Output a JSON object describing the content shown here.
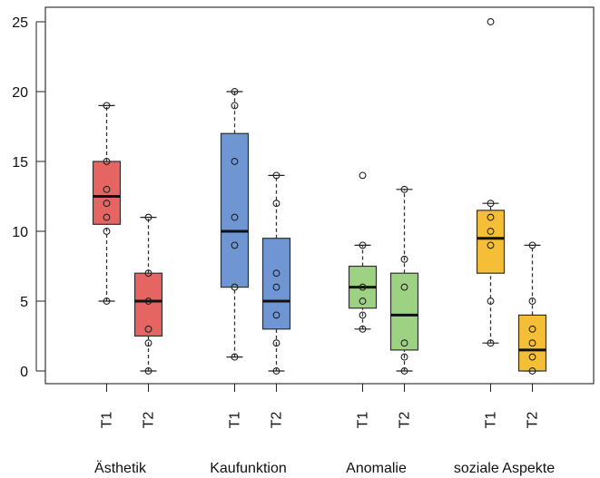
{
  "chart_data": {
    "type": "box",
    "y_axis": {
      "ticks": [
        0,
        5,
        10,
        15,
        20,
        25
      ],
      "ylim": [
        0,
        25
      ]
    },
    "groups": [
      {
        "name": "Ästhetik",
        "color": "#e56563",
        "boxes": [
          {
            "label": "T1",
            "whisker_low": 5,
            "q1": 10.5,
            "median": 12.5,
            "q3": 15,
            "whisker_high": 19,
            "points": [
              19,
              15,
              13,
              12,
              11,
              10,
              5
            ]
          },
          {
            "label": "T2",
            "whisker_low": 0,
            "q1": 2.5,
            "median": 5,
            "q3": 7,
            "whisker_high": 11,
            "points": [
              11,
              7,
              5,
              3,
              2,
              0
            ]
          }
        ]
      },
      {
        "name": "Kaufunktion",
        "color": "#6f95d2",
        "boxes": [
          {
            "label": "T1",
            "whisker_low": 1,
            "q1": 6,
            "median": 10,
            "q3": 17,
            "whisker_high": 20,
            "points": [
              20,
              19,
              15,
              11,
              9,
              6,
              1
            ]
          },
          {
            "label": "T2",
            "whisker_low": 0,
            "q1": 3,
            "median": 5,
            "q3": 9.5,
            "whisker_high": 14,
            "points": [
              14,
              12,
              7,
              6,
              4,
              2,
              0
            ]
          }
        ]
      },
      {
        "name": "Anomalie",
        "color": "#9ed283",
        "boxes": [
          {
            "label": "T1",
            "whisker_low": 3,
            "q1": 4.5,
            "median": 6,
            "q3": 7.5,
            "whisker_high": 9,
            "points": [
              14,
              9,
              6,
              5,
              4,
              3
            ]
          },
          {
            "label": "T2",
            "whisker_low": 0,
            "q1": 1.5,
            "median": 4,
            "q3": 7,
            "whisker_high": 13,
            "points": [
              13,
              8,
              6,
              2,
              1,
              0
            ]
          }
        ]
      },
      {
        "name": "soziale Aspekte",
        "color": "#f4bf37",
        "boxes": [
          {
            "label": "T1",
            "whisker_low": 2,
            "q1": 7,
            "median": 9.5,
            "q3": 11.5,
            "whisker_high": 12,
            "points": [
              25,
              12,
              11,
              10,
              9,
              5,
              2
            ]
          },
          {
            "label": "T2",
            "whisker_low": 0,
            "q1": 0,
            "median": 1.5,
            "q3": 4,
            "whisker_high": 9,
            "points": [
              9,
              5,
              3,
              2,
              1,
              0
            ]
          }
        ]
      }
    ]
  }
}
